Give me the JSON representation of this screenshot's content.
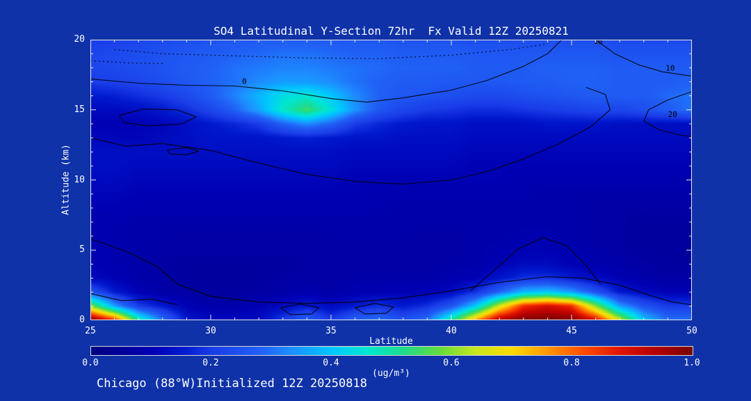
{
  "page": {
    "background": "#0f32a8",
    "text_color": "#ffffff",
    "frame_color": "#e8e8e8",
    "contour_color": "#000000"
  },
  "title": "SO4 Latitudinal Y-Section 72hr  Fx Valid 12Z 20250821",
  "footer": "Chicago (88°W)Initialized 12Z 20250818",
  "chart_data": {
    "type": "heatmap",
    "title": "SO4 Latitudinal Y-Section 72hr  Fx Valid 12Z 20250821",
    "xlabel": "Latitude",
    "ylabel": "Altitude (km)",
    "xlim": [
      25,
      50
    ],
    "ylim": [
      0,
      20
    ],
    "x_ticks": [
      25,
      30,
      35,
      40,
      45,
      50
    ],
    "y_ticks": [
      0,
      5,
      10,
      15,
      20
    ],
    "colorbar": {
      "label": "(ug/m³)",
      "ticks": [
        "0.0",
        "0.2",
        "0.4",
        "0.6",
        "0.8",
        "1.0"
      ],
      "min": 0.0,
      "max": 1.0
    },
    "colormap": [
      [
        0.0,
        "#000080"
      ],
      [
        0.1,
        "#0000b4"
      ],
      [
        0.15,
        "#0018cd"
      ],
      [
        0.2,
        "#1a3ce8"
      ],
      [
        0.28,
        "#2060f5"
      ],
      [
        0.33,
        "#1e8cff"
      ],
      [
        0.4,
        "#00c8ff"
      ],
      [
        0.46,
        "#00e6d2"
      ],
      [
        0.52,
        "#1edc8c"
      ],
      [
        0.58,
        "#64dc3c"
      ],
      [
        0.64,
        "#c8e61e"
      ],
      [
        0.7,
        "#ffdc00"
      ],
      [
        0.76,
        "#ff9600"
      ],
      [
        0.82,
        "#ff4b00"
      ],
      [
        0.88,
        "#e11400"
      ],
      [
        0.94,
        "#b40000"
      ],
      [
        1.0,
        "#780000"
      ]
    ],
    "grid": {
      "lat_min": 25,
      "lat_max": 50,
      "alt_min": 0,
      "alt_max": 20,
      "order": "rows are altitudes from 0 km (first) to 20 km (last); columns are latitudes 25..50",
      "values_by_alt": [
        [
          1.0,
          0.85,
          0.5,
          0.3,
          0.15,
          0.12,
          0.12,
          0.12,
          0.2,
          0.28,
          0.2,
          0.28,
          0.3,
          0.25,
          0.3,
          0.5,
          0.75,
          0.95,
          1.0,
          1.0,
          1.0,
          0.9,
          0.65,
          0.4,
          0.3,
          0.3
        ],
        [
          0.6,
          0.35,
          0.2,
          0.15,
          0.1,
          0.08,
          0.08,
          0.1,
          0.12,
          0.15,
          0.12,
          0.15,
          0.18,
          0.15,
          0.18,
          0.25,
          0.4,
          0.65,
          0.85,
          0.9,
          0.85,
          0.6,
          0.35,
          0.25,
          0.2,
          0.2
        ],
        [
          0.25,
          0.15,
          0.1,
          0.08,
          0.07,
          0.06,
          0.06,
          0.07,
          0.08,
          0.09,
          0.08,
          0.09,
          0.1,
          0.1,
          0.1,
          0.12,
          0.18,
          0.28,
          0.38,
          0.4,
          0.35,
          0.25,
          0.15,
          0.12,
          0.1,
          0.1
        ],
        [
          0.12,
          0.1,
          0.08,
          0.07,
          0.06,
          0.06,
          0.06,
          0.06,
          0.07,
          0.07,
          0.07,
          0.08,
          0.08,
          0.08,
          0.08,
          0.09,
          0.1,
          0.14,
          0.18,
          0.18,
          0.15,
          0.12,
          0.1,
          0.08,
          0.07,
          0.07
        ],
        [
          0.1,
          0.09,
          0.08,
          0.07,
          0.06,
          0.06,
          0.06,
          0.06,
          0.06,
          0.07,
          0.07,
          0.07,
          0.07,
          0.07,
          0.07,
          0.08,
          0.08,
          0.1,
          0.12,
          0.12,
          0.1,
          0.09,
          0.08,
          0.07,
          0.06,
          0.06
        ],
        [
          0.1,
          0.09,
          0.08,
          0.07,
          0.07,
          0.07,
          0.07,
          0.07,
          0.07,
          0.07,
          0.07,
          0.07,
          0.07,
          0.07,
          0.07,
          0.07,
          0.08,
          0.09,
          0.1,
          0.1,
          0.09,
          0.08,
          0.07,
          0.06,
          0.06,
          0.06
        ],
        [
          0.09,
          0.09,
          0.08,
          0.08,
          0.07,
          0.07,
          0.07,
          0.07,
          0.07,
          0.07,
          0.08,
          0.08,
          0.08,
          0.08,
          0.07,
          0.07,
          0.08,
          0.08,
          0.09,
          0.09,
          0.08,
          0.07,
          0.07,
          0.06,
          0.06,
          0.06
        ],
        [
          0.09,
          0.09,
          0.08,
          0.08,
          0.08,
          0.08,
          0.08,
          0.08,
          0.08,
          0.08,
          0.08,
          0.08,
          0.08,
          0.08,
          0.08,
          0.08,
          0.08,
          0.08,
          0.08,
          0.08,
          0.08,
          0.07,
          0.07,
          0.06,
          0.06,
          0.06
        ],
        [
          0.1,
          0.1,
          0.09,
          0.09,
          0.09,
          0.09,
          0.09,
          0.09,
          0.09,
          0.09,
          0.09,
          0.09,
          0.09,
          0.08,
          0.08,
          0.08,
          0.08,
          0.08,
          0.08,
          0.08,
          0.08,
          0.07,
          0.07,
          0.07,
          0.07,
          0.07
        ],
        [
          0.11,
          0.11,
          0.1,
          0.1,
          0.1,
          0.1,
          0.1,
          0.1,
          0.1,
          0.1,
          0.1,
          0.1,
          0.09,
          0.09,
          0.09,
          0.09,
          0.09,
          0.09,
          0.09,
          0.08,
          0.08,
          0.08,
          0.08,
          0.08,
          0.08,
          0.08
        ],
        [
          0.12,
          0.12,
          0.11,
          0.11,
          0.11,
          0.11,
          0.11,
          0.11,
          0.11,
          0.11,
          0.11,
          0.1,
          0.1,
          0.1,
          0.1,
          0.1,
          0.1,
          0.1,
          0.09,
          0.09,
          0.09,
          0.09,
          0.09,
          0.09,
          0.09,
          0.09
        ],
        [
          0.13,
          0.13,
          0.12,
          0.12,
          0.12,
          0.12,
          0.12,
          0.12,
          0.12,
          0.12,
          0.12,
          0.11,
          0.11,
          0.11,
          0.11,
          0.11,
          0.1,
          0.1,
          0.1,
          0.1,
          0.1,
          0.1,
          0.1,
          0.1,
          0.1,
          0.1
        ],
        [
          0.13,
          0.13,
          0.13,
          0.13,
          0.13,
          0.13,
          0.13,
          0.13,
          0.13,
          0.13,
          0.13,
          0.12,
          0.12,
          0.12,
          0.12,
          0.12,
          0.11,
          0.11,
          0.11,
          0.11,
          0.11,
          0.11,
          0.11,
          0.11,
          0.11,
          0.11
        ],
        [
          0.12,
          0.11,
          0.11,
          0.12,
          0.13,
          0.14,
          0.14,
          0.14,
          0.15,
          0.16,
          0.15,
          0.14,
          0.14,
          0.13,
          0.13,
          0.13,
          0.12,
          0.12,
          0.12,
          0.12,
          0.12,
          0.12,
          0.12,
          0.12,
          0.12,
          0.12
        ],
        [
          0.1,
          0.1,
          0.1,
          0.11,
          0.13,
          0.15,
          0.17,
          0.2,
          0.28,
          0.33,
          0.28,
          0.2,
          0.17,
          0.15,
          0.14,
          0.14,
          0.13,
          0.13,
          0.13,
          0.14,
          0.14,
          0.14,
          0.13,
          0.13,
          0.13,
          0.13
        ],
        [
          0.12,
          0.12,
          0.13,
          0.15,
          0.18,
          0.22,
          0.28,
          0.36,
          0.47,
          0.55,
          0.45,
          0.34,
          0.26,
          0.22,
          0.2,
          0.19,
          0.18,
          0.18,
          0.19,
          0.2,
          0.21,
          0.22,
          0.22,
          0.24,
          0.27,
          0.3
        ],
        [
          0.15,
          0.16,
          0.18,
          0.2,
          0.23,
          0.27,
          0.32,
          0.38,
          0.44,
          0.46,
          0.4,
          0.33,
          0.28,
          0.26,
          0.25,
          0.24,
          0.23,
          0.23,
          0.24,
          0.25,
          0.26,
          0.27,
          0.27,
          0.27,
          0.29,
          0.3
        ],
        [
          0.2,
          0.21,
          0.22,
          0.24,
          0.26,
          0.28,
          0.3,
          0.33,
          0.35,
          0.35,
          0.33,
          0.3,
          0.28,
          0.27,
          0.27,
          0.26,
          0.26,
          0.26,
          0.27,
          0.27,
          0.28,
          0.28,
          0.27,
          0.27,
          0.27,
          0.28
        ],
        [
          0.22,
          0.23,
          0.24,
          0.25,
          0.27,
          0.28,
          0.3,
          0.31,
          0.32,
          0.32,
          0.31,
          0.3,
          0.29,
          0.28,
          0.28,
          0.28,
          0.27,
          0.27,
          0.27,
          0.28,
          0.28,
          0.28,
          0.27,
          0.27,
          0.27,
          0.27
        ],
        [
          0.22,
          0.23,
          0.24,
          0.25,
          0.26,
          0.27,
          0.28,
          0.29,
          0.3,
          0.3,
          0.29,
          0.28,
          0.28,
          0.27,
          0.27,
          0.27,
          0.26,
          0.26,
          0.26,
          0.26,
          0.26,
          0.26,
          0.25,
          0.25,
          0.25,
          0.25
        ],
        [
          0.2,
          0.21,
          0.22,
          0.23,
          0.24,
          0.25,
          0.26,
          0.27,
          0.27,
          0.27,
          0.27,
          0.26,
          0.26,
          0.25,
          0.25,
          0.25,
          0.24,
          0.24,
          0.24,
          0.24,
          0.24,
          0.24,
          0.23,
          0.23,
          0.23,
          0.23
        ]
      ]
    },
    "contours": {
      "color": "#000000",
      "lines": [
        {
          "level": 0,
          "dashed": false,
          "points": [
            [
              25,
              17.2
            ],
            [
              27,
              16.9
            ],
            [
              29,
              16.75
            ],
            [
              31,
              16.7
            ],
            [
              33,
              16.35
            ],
            [
              35,
              15.8
            ],
            [
              36.5,
              15.55
            ],
            [
              38,
              15.85
            ],
            [
              40,
              16.4
            ],
            [
              41.5,
              17.1
            ],
            [
              43,
              18.1
            ],
            [
              44,
              19.0
            ],
            [
              44.6,
              20
            ]
          ]
        },
        {
          "level": -10,
          "dashed": true,
          "points": [
            [
              26,
              19.3
            ],
            [
              28,
              19.0
            ],
            [
              31,
              18.85
            ],
            [
              34,
              18.7
            ],
            [
              37,
              18.65
            ],
            [
              40,
              18.9
            ],
            [
              42.5,
              19.3
            ],
            [
              44,
              19.7
            ]
          ]
        },
        {
          "level": -10,
          "dashed": true,
          "points": [
            [
              25,
              18.5
            ],
            [
              26.5,
              18.35
            ],
            [
              28,
              18.3
            ]
          ]
        },
        {
          "level": 10,
          "dashed": false,
          "points": [
            [
              46.0,
              20
            ],
            [
              46.8,
              19.0
            ],
            [
              47.8,
              18.2
            ],
            [
              48.8,
              17.7
            ],
            [
              50,
              17.4
            ]
          ]
        },
        {
          "level": 20,
          "dashed": false,
          "points": [
            [
              50,
              16.3
            ],
            [
              49,
              15.7
            ],
            [
              48.2,
              15.0
            ],
            [
              48.0,
              14.2
            ],
            [
              48.6,
              13.6
            ],
            [
              49.5,
              13.2
            ],
            [
              50,
              13.1
            ]
          ]
        },
        {
          "level": 0,
          "dashed": false,
          "points": [
            [
              26.2,
              14.6
            ],
            [
              27.2,
              15.05
            ],
            [
              28.6,
              15.0
            ],
            [
              29.4,
              14.5
            ],
            [
              28.8,
              14.0
            ],
            [
              27.4,
              13.85
            ],
            [
              26.4,
              14.1
            ],
            [
              26.2,
              14.6
            ]
          ]
        },
        {
          "level": 0,
          "dashed": false,
          "points": [
            [
              28.2,
              12.15
            ],
            [
              29.0,
              12.3
            ],
            [
              29.5,
              12.05
            ],
            [
              29.0,
              11.8
            ],
            [
              28.3,
              11.85
            ],
            [
              28.2,
              12.15
            ]
          ]
        },
        {
          "level": 0,
          "dashed": false,
          "points": [
            [
              25,
              13.0
            ],
            [
              26.5,
              12.4
            ],
            [
              28,
              12.6
            ],
            [
              30,
              12.1
            ],
            [
              32,
              11.2
            ],
            [
              34,
              10.4
            ],
            [
              36,
              9.9
            ],
            [
              38,
              9.7
            ],
            [
              40,
              10.0
            ],
            [
              41.5,
              10.6
            ],
            [
              43,
              11.5
            ],
            [
              44.5,
              12.6
            ],
            [
              45.8,
              13.8
            ],
            [
              46.6,
              15.0
            ],
            [
              46.4,
              16.1
            ],
            [
              45.6,
              16.6
            ]
          ]
        },
        {
          "level": 0,
          "dashed": false,
          "points": [
            [
              25,
              5.8
            ],
            [
              26.5,
              4.9
            ],
            [
              27.8,
              3.8
            ],
            [
              28.6,
              2.6
            ],
            [
              30,
              1.7
            ],
            [
              32,
              1.3
            ],
            [
              34,
              1.2
            ],
            [
              36,
              1.3
            ],
            [
              38,
              1.6
            ],
            [
              40,
              2.1
            ],
            [
              42,
              2.7
            ],
            [
              44,
              3.1
            ],
            [
              45.5,
              3.0
            ],
            [
              47,
              2.5
            ],
            [
              48.2,
              1.8
            ],
            [
              49.2,
              1.3
            ],
            [
              50,
              1.1
            ]
          ]
        },
        {
          "level": 0,
          "dashed": false,
          "points": [
            [
              40.8,
              2.1
            ],
            [
              41.8,
              3.6
            ],
            [
              42.8,
              5.1
            ],
            [
              43.8,
              5.9
            ],
            [
              44.8,
              5.3
            ],
            [
              45.6,
              3.9
            ],
            [
              46.2,
              2.6
            ]
          ]
        },
        {
          "level": 0,
          "dashed": false,
          "points": [
            [
              32.9,
              0.9
            ],
            [
              33.7,
              1.15
            ],
            [
              34.5,
              0.9
            ],
            [
              34.2,
              0.45
            ],
            [
              33.3,
              0.4
            ],
            [
              32.9,
              0.9
            ]
          ]
        },
        {
          "level": 0,
          "dashed": false,
          "points": [
            [
              36.0,
              0.9
            ],
            [
              36.8,
              1.2
            ],
            [
              37.6,
              0.95
            ],
            [
              37.3,
              0.5
            ],
            [
              36.4,
              0.45
            ],
            [
              36.0,
              0.9
            ]
          ]
        },
        {
          "level": 0,
          "dashed": false,
          "points": [
            [
              25,
              1.9
            ],
            [
              26.3,
              1.4
            ],
            [
              27.6,
              1.5
            ],
            [
              28.6,
              1.1
            ]
          ]
        }
      ],
      "labels": [
        {
          "text": "0",
          "lat": 31.4,
          "alt": 16.85
        },
        {
          "text": "10",
          "lat": 46.1,
          "alt": 19.7
        },
        {
          "text": "10",
          "lat": 49.1,
          "alt": 17.8
        },
        {
          "text": "20",
          "lat": 49.2,
          "alt": 14.5
        }
      ]
    }
  }
}
